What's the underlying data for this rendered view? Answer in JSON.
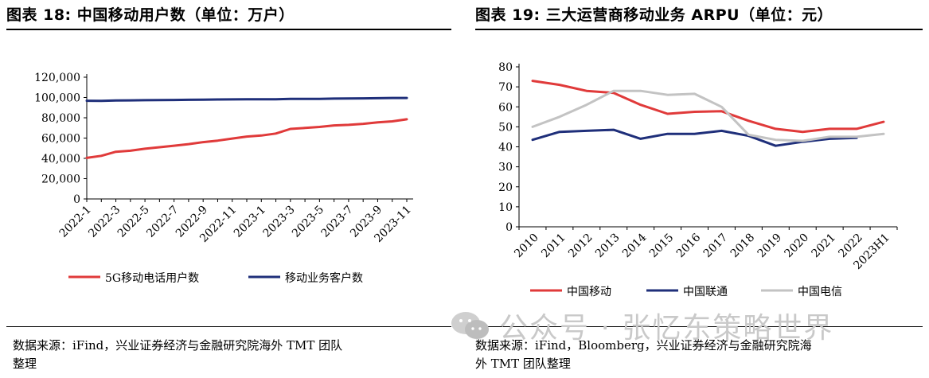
{
  "left": {
    "title": "图表 18:  中国移动用户数（单位：万户）",
    "source_line1": "数据来源：iFind，兴业证券经济与金融研究院海外 TMT 团队",
    "source_line2": "整理"
  },
  "right": {
    "title": "图表 19:  三大运营商移动业务 ARPU（单位：元）",
    "source_line1": "数据来源：iFind，Bloomberg，兴业证券经济与金融研究院海",
    "source_line2": "外 TMT 团队整理"
  },
  "watermark": {
    "text": "公众号 · 张忆东策略世界"
  },
  "colors": {
    "red": "#e03a3a",
    "navy": "#1f2f7a",
    "gray": "#c3c3c3"
  },
  "chart_data": [
    {
      "type": "line",
      "title": "中国移动用户数（单位：万户）",
      "ylim": [
        0,
        120000
      ],
      "yticks": [
        0,
        20000,
        40000,
        60000,
        80000,
        100000,
        120000
      ],
      "ytick_labels": [
        "0",
        "20,000",
        "40,000",
        "60,000",
        "80,000",
        "100,000",
        "120,000"
      ],
      "x": [
        "2022-1",
        "2022-2",
        "2022-3",
        "2022-4",
        "2022-5",
        "2022-6",
        "2022-7",
        "2022-8",
        "2022-9",
        "2022-10",
        "2022-11",
        "2022-12",
        "2023-1",
        "2023-2",
        "2023-3",
        "2023-4",
        "2023-5",
        "2023-6",
        "2023-7",
        "2023-8",
        "2023-9",
        "2023-10",
        "2023-11"
      ],
      "xtick_labels": [
        "2022-1",
        "2022-3",
        "2022-5",
        "2022-7",
        "2022-9",
        "2022-11",
        "2023-1",
        "2023-3",
        "2023-5",
        "2023-7",
        "2023-9",
        "2023-11"
      ],
      "series": [
        {
          "name": "5G移动电话用户数",
          "color": "#e03a3a",
          "values": [
            40500,
            42500,
            46500,
            47500,
            49500,
            51000,
            52500,
            54000,
            56000,
            57500,
            59500,
            61500,
            62500,
            64500,
            69000,
            70000,
            71000,
            72500,
            73000,
            74000,
            75500,
            76500,
            78500
          ]
        },
        {
          "name": "移动业务客户数",
          "color": "#1f2f7a",
          "values": [
            96800,
            96700,
            97100,
            97200,
            97300,
            97500,
            97600,
            97700,
            97900,
            98000,
            98100,
            98200,
            98200,
            98300,
            98600,
            98700,
            98700,
            98900,
            99000,
            99100,
            99300,
            99500,
            99500
          ]
        }
      ],
      "legend": "bottom"
    },
    {
      "type": "line",
      "title": "三大运营商移动业务 ARPU（单位：元）",
      "ylim": [
        0,
        80
      ],
      "yticks": [
        0,
        10,
        20,
        30,
        40,
        50,
        60,
        70,
        80
      ],
      "ytick_labels": [
        "0",
        "10",
        "20",
        "30",
        "40",
        "50",
        "60",
        "70",
        "80"
      ],
      "x": [
        "2010",
        "2011",
        "2012",
        "2013",
        "2014",
        "2015",
        "2016",
        "2017",
        "2018",
        "2019",
        "2020",
        "2021",
        "2022",
        "2023H1"
      ],
      "series": [
        {
          "name": "中国移动",
          "color": "#e03a3a",
          "values": [
            73,
            71,
            68,
            67,
            61,
            56.5,
            57.5,
            57.8,
            53,
            49,
            47.5,
            49,
            49,
            52.5
          ]
        },
        {
          "name": "中国联通",
          "color": "#1f2f7a",
          "values": [
            43.5,
            47.5,
            48,
            48.5,
            44,
            46.5,
            46.5,
            48,
            45.5,
            40.5,
            42.5,
            44,
            44.5,
            null
          ]
        },
        {
          "name": "中国电信",
          "color": "#c3c3c3",
          "values": [
            50,
            55,
            61,
            68,
            68,
            66,
            66.5,
            60,
            46,
            43.5,
            43,
            45,
            45,
            46.5
          ]
        }
      ],
      "legend": "bottom"
    }
  ]
}
